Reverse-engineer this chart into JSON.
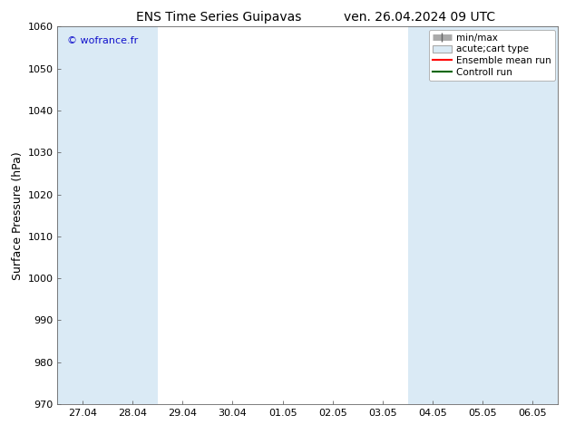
{
  "title_left": "ENS Time Series Guipavas",
  "title_right": "ven. 26.04.2024 09 UTC",
  "ylabel": "Surface Pressure (hPa)",
  "ylim": [
    970,
    1060
  ],
  "yticks": [
    970,
    980,
    990,
    1000,
    1010,
    1020,
    1030,
    1040,
    1050,
    1060
  ],
  "x_tick_labels": [
    "27.04",
    "28.04",
    "29.04",
    "30.04",
    "01.05",
    "02.05",
    "03.05",
    "04.05",
    "05.05",
    "06.05"
  ],
  "x_tick_positions": [
    0,
    1,
    2,
    3,
    4,
    5,
    6,
    7,
    8,
    9
  ],
  "watermark": "© wofrance.fr",
  "watermark_color": "#1111cc",
  "background_color": "#ffffff",
  "plot_bg_color": "#ffffff",
  "shaded_color": "#daeaf5",
  "shaded_ranges": [
    [
      -0.5,
      0.5
    ],
    [
      0.5,
      1.5
    ],
    [
      6.5,
      7.5
    ],
    [
      7.5,
      8.5
    ],
    [
      8.5,
      9.5
    ]
  ],
  "title_fontsize": 10,
  "tick_fontsize": 8,
  "ylabel_fontsize": 9,
  "legend_fontsize": 7.5
}
